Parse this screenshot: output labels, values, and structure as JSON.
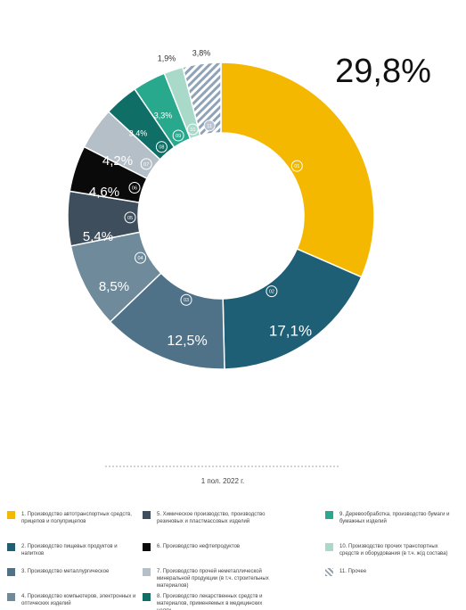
{
  "chart_data": {
    "type": "donut",
    "caption": "1 пол. 2022 г.",
    "codes": [
      "01",
      "02",
      "03",
      "04",
      "05",
      "06",
      "07",
      "08",
      "09",
      "10",
      "11"
    ],
    "categories": [
      "1. Производство автотранспортных средств, прицепов и полуприцепов",
      "2. Производство пищевых продуктов и напитков",
      "3. Производство металлургическое",
      "4. Производство компьютеров, электронных и оптических изделий",
      "5. Химическое производство, производство резиновых и пластмассовых изделий",
      "6. Производство нефтепродуктов",
      "7. Производство прочей неметаллической минеральной продукции (в т.ч. строительных материалов)",
      "8. Производство лекарственных средств и материалов, применяемых в медицинских целях",
      "9. Деревообработка, производство бумаги и бумажных изделий",
      "10. Производство прочих транспортных средств и оборудования (в т.ч. ж/д состава)",
      "11. Прочее"
    ],
    "values": [
      29.8,
      17.1,
      12.5,
      8.5,
      5.4,
      4.6,
      4.2,
      3.4,
      3.3,
      1.9,
      3.8
    ],
    "value_labels": [
      "29,8%",
      "17,1%",
      "12,5%",
      "8,5%",
      "5,4%",
      "4,6%",
      "4,2%",
      "3,4%",
      "3,3%",
      "1,9%",
      "3,8%"
    ],
    "colors": [
      "#f5b800",
      "#1f5f75",
      "#4f7289",
      "#6f8a9a",
      "#3e4e5c",
      "#0a0a0a",
      "#b5bfc8",
      "#0f6e66",
      "#28a98e",
      "#a9d9c8",
      "#8fa3b8"
    ],
    "hatch": [
      false,
      false,
      false,
      false,
      false,
      false,
      false,
      false,
      false,
      false,
      true
    ]
  }
}
